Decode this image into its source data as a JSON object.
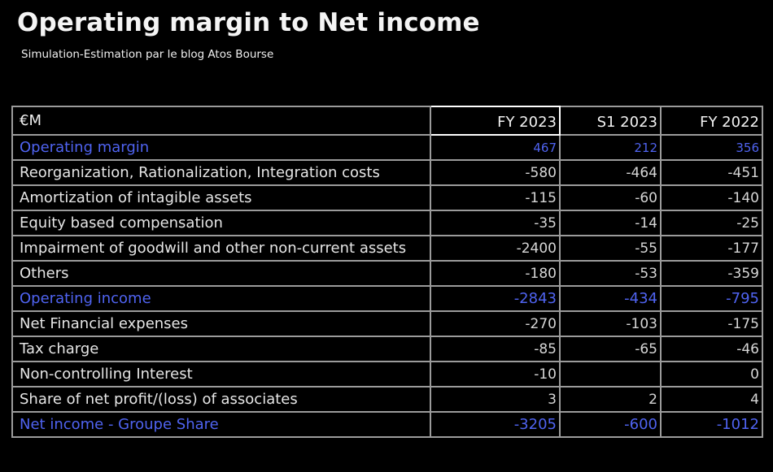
{
  "title": "Operating margin to Net income",
  "subtitle": "Simulation-Estimation par le blog Atos Bourse",
  "table": {
    "header": [
      "€M",
      "FY 2023",
      "S1 2023",
      "FY 2022"
    ],
    "rows": [
      {
        "label": "Operating margin",
        "highlight": true,
        "values": [
          "467",
          "212",
          "356"
        ]
      },
      {
        "label": "Reorganization, Rationalization, Integration costs",
        "highlight": false,
        "values": [
          "-580",
          "-464",
          "-451"
        ]
      },
      {
        "label": "Amortization of intagible assets",
        "highlight": false,
        "values": [
          "-115",
          "-60",
          "-140"
        ]
      },
      {
        "label": "Equity based compensation",
        "highlight": false,
        "values": [
          "-35",
          "-14",
          "-25"
        ]
      },
      {
        "label": "Impairment of goodwill and other non-current assets",
        "highlight": false,
        "values": [
          "-2400",
          "-55",
          "-177"
        ]
      },
      {
        "label": "Others",
        "highlight": false,
        "values": [
          "-180",
          "-53",
          "-359"
        ]
      },
      {
        "label": "Operating income",
        "highlight": true,
        "values": [
          "-2843",
          "-434",
          "-795"
        ]
      },
      {
        "label": "Net Financial expenses",
        "highlight": false,
        "values": [
          "-270",
          "-103",
          "-175"
        ]
      },
      {
        "label": "Tax charge",
        "highlight": false,
        "values": [
          "-85",
          "-65",
          "-46"
        ]
      },
      {
        "label": "Non-controlling Interest",
        "highlight": false,
        "values": [
          "-10",
          "",
          "0"
        ]
      },
      {
        "label": "Share of net profit/(loss) of associates",
        "highlight": false,
        "values": [
          "3",
          "2",
          "4"
        ]
      },
      {
        "label": "Net income - Groupe Share",
        "highlight": true,
        "values": [
          "-3205",
          "-600",
          "-1012"
        ]
      }
    ]
  },
  "colors": {
    "background": "#000000",
    "highlight_text": "#4f63f0",
    "grid": "#9b9b9b"
  }
}
